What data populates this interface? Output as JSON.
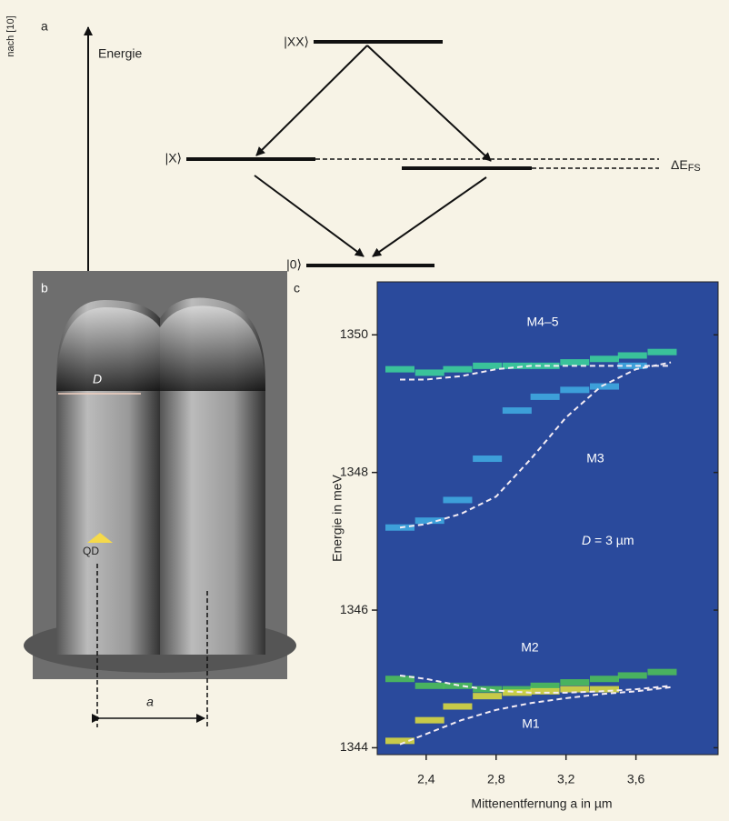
{
  "side_note": "nach [10]",
  "panel_a": {
    "label": "a",
    "axis_label": "Energie",
    "state_xx": "|XX⟩",
    "state_x": "|X⟩",
    "state_0": "|0⟩",
    "splitting": "ΔE",
    "splitting_sub": "FS"
  },
  "panel_b": {
    "label": "b",
    "diameter": "D",
    "dot": "QD",
    "distance": "a"
  },
  "chart_data": {
    "type": "heatmap",
    "panel_label": "c",
    "y_label": "Energie in meV",
    "x_label": "Mittenentfernung a in µm",
    "annotation": "D",
    "annotation_rest": " = 3 µm",
    "xlim": [
      2.12,
      4.07
    ],
    "ylim": [
      1343.9,
      1350.77
    ],
    "xticks": [
      {
        "value": 2.4,
        "label": "2,4"
      },
      {
        "value": 2.8,
        "label": "2,8"
      },
      {
        "value": 3.2,
        "label": "3,2"
      },
      {
        "value": 3.6,
        "label": "3,6"
      }
    ],
    "yticks": [
      1344,
      1346,
      1348,
      1350
    ],
    "background": "#2a4a9c",
    "series": [
      {
        "name": "M4–5",
        "color": "#3ccf9a",
        "x": [
          2.25,
          2.42,
          2.58,
          2.75,
          2.92,
          3.08,
          3.25,
          3.42,
          3.58,
          3.75
        ],
        "values": [
          1349.5,
          1349.45,
          1349.5,
          1349.55,
          1349.55,
          1349.55,
          1349.6,
          1349.65,
          1349.7,
          1349.75
        ]
      },
      {
        "name": "M3",
        "color": "#3fa8e0",
        "x": [
          2.25,
          2.42,
          2.58,
          2.75,
          2.92,
          3.08,
          3.25,
          3.42,
          3.58
        ],
        "values": [
          1347.2,
          1347.3,
          1347.6,
          1348.2,
          1348.9,
          1349.1,
          1349.2,
          1349.25,
          1349.55
        ]
      },
      {
        "name": "M2",
        "color": "#4cbe5a",
        "x": [
          2.25,
          2.42,
          2.58,
          2.75,
          2.92,
          3.08,
          3.25,
          3.42,
          3.58,
          3.75
        ],
        "values": [
          1345.0,
          1344.9,
          1344.9,
          1344.85,
          1344.85,
          1344.9,
          1344.95,
          1345.0,
          1345.05,
          1345.1
        ]
      },
      {
        "name": "M1",
        "color": "#d8d840",
        "x": [
          2.25,
          2.42,
          2.58,
          2.75,
          2.92,
          3.08,
          3.25,
          3.42
        ],
        "values": [
          1344.1,
          1344.4,
          1344.6,
          1344.75,
          1344.8,
          1344.82,
          1344.85,
          1344.85
        ]
      }
    ],
    "fit_color": "#f4ecf4",
    "fits": [
      {
        "x": [
          2.25,
          2.4,
          2.6,
          2.8,
          3.0,
          3.2,
          3.4,
          3.6,
          3.8
        ],
        "values": [
          1349.35,
          1349.35,
          1349.4,
          1349.5,
          1349.55,
          1349.55,
          1349.55,
          1349.55,
          1349.55
        ]
      },
      {
        "x": [
          2.25,
          2.4,
          2.6,
          2.8,
          3.0,
          3.2,
          3.4,
          3.6,
          3.8
        ],
        "values": [
          1347.2,
          1347.25,
          1347.4,
          1347.65,
          1348.2,
          1348.8,
          1349.25,
          1349.5,
          1349.6
        ]
      },
      {
        "x": [
          2.25,
          2.4,
          2.6,
          2.8,
          3.0,
          3.2,
          3.4,
          3.6,
          3.8
        ],
        "values": [
          1345.05,
          1345.0,
          1344.9,
          1344.83,
          1344.8,
          1344.8,
          1344.82,
          1344.85,
          1344.9
        ]
      },
      {
        "x": [
          2.25,
          2.4,
          2.6,
          2.8,
          3.0,
          3.2,
          3.4,
          3.6,
          3.8
        ],
        "values": [
          1344.05,
          1344.2,
          1344.4,
          1344.55,
          1344.65,
          1344.72,
          1344.78,
          1344.82,
          1344.88
        ]
      }
    ]
  }
}
